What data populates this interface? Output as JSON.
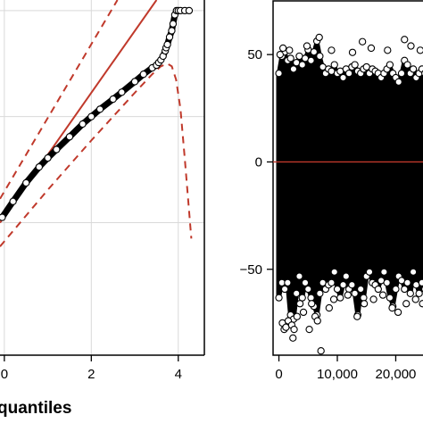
{
  "chart_data": [
    {
      "type": "scatter",
      "title": "",
      "xlabel": "quantiles",
      "ylabel": "",
      "xlim": [
        -0.1,
        4.6
      ],
      "ylim": [
        -2.5,
        4.2
      ],
      "x_ticks": [
        "0",
        "2",
        "4"
      ],
      "grid": true,
      "series": [
        {
          "kind": "points",
          "color": "#000000",
          "x": [
            -0.05,
            0.2,
            0.5,
            0.8,
            1.0,
            1.2,
            1.5,
            1.8,
            2.0,
            2.2,
            2.5,
            2.7,
            3.0,
            3.2,
            3.4,
            3.5,
            3.55,
            3.6,
            3.65,
            3.7,
            3.72,
            3.75,
            3.8,
            3.85,
            3.88,
            3.92,
            3.96,
            4.0,
            4.05,
            4.15,
            4.25
          ],
          "y": [
            0.1,
            0.4,
            0.75,
            1.05,
            1.22,
            1.38,
            1.62,
            1.86,
            2.0,
            2.14,
            2.33,
            2.46,
            2.66,
            2.8,
            2.92,
            2.97,
            3.02,
            3.07,
            3.14,
            3.24,
            3.3,
            3.36,
            3.5,
            3.62,
            3.75,
            3.92,
            4.0,
            4.0,
            4.0,
            4.0,
            4.0
          ]
        },
        {
          "kind": "reference-line",
          "color": "#c0392b",
          "style": "solid",
          "x": [
            -0.1,
            3.5
          ],
          "y": [
            0.0,
            4.2
          ]
        },
        {
          "kind": "upper-band",
          "color": "#c0392b",
          "style": "dashed",
          "x": [
            -0.1,
            2.6
          ],
          "y": [
            0.45,
            4.2
          ]
        },
        {
          "kind": "lower-band",
          "color": "#c0392b",
          "style": "dashed",
          "x": [
            -0.1,
            1.0,
            2.0,
            3.0,
            3.4,
            3.6,
            3.75,
            3.85,
            3.95,
            4.05,
            4.15,
            4.3
          ],
          "y": [
            -0.45,
            0.62,
            1.55,
            2.45,
            2.8,
            2.95,
            3.0,
            2.95,
            2.7,
            2.15,
            1.2,
            -0.3
          ]
        }
      ]
    },
    {
      "type": "scatter",
      "title": "",
      "xlabel": "",
      "ylabel": "",
      "xlim": [
        -1000,
        26500
      ],
      "ylim": [
        -90,
        75
      ],
      "y_ticks": [
        {
          "value": 50,
          "label": "50"
        },
        {
          "value": 0,
          "label": "0"
        },
        {
          "value": -50,
          "label": "−50"
        }
      ],
      "x_ticks": [
        {
          "value": 0,
          "label": "0"
        },
        {
          "value": 10000,
          "label": "10,000"
        },
        {
          "value": 20000,
          "label": "20,000"
        }
      ],
      "reference_line": {
        "y": 0,
        "color": "#c0392b"
      },
      "series": [
        {
          "kind": "residual-envelope",
          "color": "#000000",
          "x": [
            0,
            500,
            1000,
            1500,
            2000,
            2500,
            3000,
            3500,
            4000,
            4500,
            5000,
            5500,
            6000,
            6500,
            7000,
            7500,
            8000,
            8500,
            9000,
            9500,
            10000,
            10500,
            11000,
            11500,
            12000,
            12500,
            13000,
            13500,
            14000,
            14500,
            15000,
            15500,
            16000,
            16500,
            17000,
            17500,
            18000,
            18500,
            19000,
            19500,
            20000,
            20500,
            21000,
            21500,
            22000,
            22500,
            23000,
            23500,
            24000,
            24500,
            25000
          ],
          "upper": [
            40,
            48,
            50,
            46,
            47,
            42,
            45,
            48,
            44,
            47,
            51,
            46,
            50,
            55,
            48,
            43,
            40,
            42,
            41,
            44,
            40,
            41,
            38,
            42,
            40,
            43,
            44,
            41,
            40,
            42,
            43,
            40,
            42,
            41,
            40,
            38,
            40,
            42,
            44,
            40,
            38,
            36,
            40,
            46,
            44,
            40,
            42,
            38,
            40,
            42,
            40
          ],
          "lower": [
            -62,
            -55,
            -58,
            -55,
            -70,
            -72,
            -60,
            -52,
            -62,
            -55,
            -58,
            -62,
            -66,
            -70,
            -60,
            -55,
            -58,
            -56,
            -55,
            -50,
            -58,
            -62,
            -56,
            -52,
            -58,
            -56,
            -60,
            -70,
            -58,
            -62,
            -52,
            -50,
            -55,
            -56,
            -58,
            -54,
            -50,
            -55,
            -62,
            -66,
            -58,
            -52,
            -54,
            -58,
            -55,
            -60,
            -50,
            -56,
            -60,
            -55,
            -58
          ]
        },
        {
          "kind": "outliers",
          "color": "#000000",
          "x": [
            600,
            900,
            1200,
            1600,
            2200,
            2600,
            3100,
            3600,
            4200,
            5200,
            5600,
            6200,
            6600,
            7200,
            8600,
            9400,
            11800,
            13400,
            14600,
            16200,
            17800,
            19400,
            20400,
            21800,
            23400,
            24600,
            2400,
            6900,
            14300,
            21500,
            200,
            700,
            1800,
            4800,
            9000,
            12600,
            15800,
            18600,
            22600,
            24200
          ],
          "y": [
            -75,
            -78,
            -77,
            -74,
            -76,
            -78,
            -72,
            -66,
            -70,
            -78,
            -66,
            -72,
            -74,
            -88,
            -68,
            -64,
            -62,
            -72,
            -66,
            -64,
            -62,
            -68,
            -70,
            -66,
            -64,
            -66,
            -82,
            58,
            56,
            57,
            50,
            53,
            52,
            54,
            52,
            51,
            53,
            52,
            54,
            52
          ]
        }
      ]
    }
  ]
}
